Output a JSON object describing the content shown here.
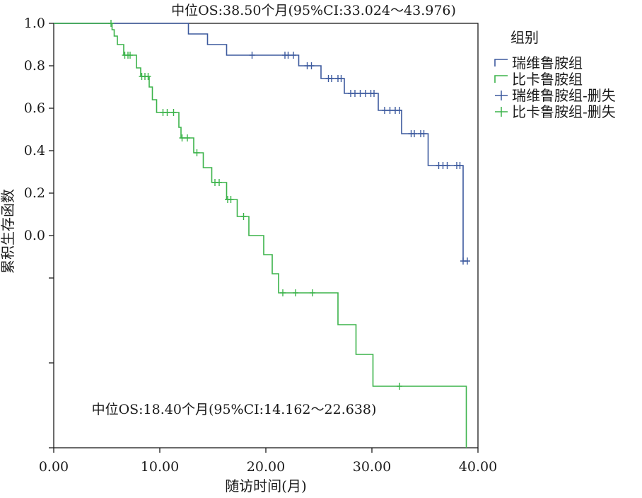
{
  "chart_data": {
    "type": "line",
    "subtype": "kaplan-meier",
    "title": "",
    "xlabel": "随访时间(月)",
    "ylabel": "累积生存函数",
    "xlim": [
      0,
      40
    ],
    "xticks": [
      "0.00",
      "10.00",
      "20.00",
      "30.00",
      "40.00"
    ],
    "yticks": [
      {
        "value": 1.0,
        "label": "1.0"
      },
      {
        "value": 0.8,
        "label": "0.8"
      },
      {
        "value": 0.6,
        "label": "0.6"
      },
      {
        "value": 0.4,
        "label": "0.4"
      },
      {
        "value": 0.2,
        "label": "0.2"
      },
      {
        "value": 0.0,
        "label": "0.0"
      },
      {
        "value": -0.2,
        "label": ""
      },
      {
        "value": -0.6,
        "label": ""
      },
      {
        "value": -1.0,
        "label": ""
      }
    ],
    "ylim": [
      -1.0,
      1.0
    ],
    "grid": false,
    "legend": {
      "title": "组别",
      "position": "right",
      "items": [
        {
          "label": "瑞维鲁胺组",
          "series": "a",
          "kind": "step"
        },
        {
          "label": "比卡鲁胺组",
          "series": "b",
          "kind": "step"
        },
        {
          "label": "瑞维鲁胺组-删失",
          "series": "a",
          "kind": "censor"
        },
        {
          "label": "比卡鲁胺组-删失",
          "series": "b",
          "kind": "censor"
        }
      ]
    },
    "annotations": [
      {
        "text": "中位OS:38.50个月(95%CI:33.024～43.976)",
        "x": 24.5,
        "y": 1.06
      },
      {
        "text": "中位OS:18.40个月(95%CI:14.162～22.638)",
        "x": 17.0,
        "y": -0.82
      }
    ],
    "series": [
      {
        "id": "a",
        "name": "瑞维鲁胺组",
        "color": "#3d5a9e",
        "steps": [
          [
            0,
            1.0
          ],
          [
            12.7,
            0.95
          ],
          [
            14.5,
            0.9
          ],
          [
            16.3,
            0.85
          ],
          [
            23.1,
            0.8
          ],
          [
            25.2,
            0.74
          ],
          [
            27.4,
            0.67
          ],
          [
            30.6,
            0.59
          ],
          [
            32.8,
            0.48
          ],
          [
            35.3,
            0.33
          ],
          [
            38.6,
            -0.12
          ],
          [
            39.0,
            -0.12
          ]
        ],
        "censored": [
          18.7,
          21.8,
          22.1,
          22.6,
          23.9,
          24.3,
          25.9,
          26.2,
          26.8,
          27.1,
          28.0,
          28.4,
          28.9,
          29.4,
          29.9,
          30.2,
          31.2,
          31.7,
          32.2,
          32.6,
          33.7,
          34.0,
          34.6,
          34.9,
          36.3,
          36.7,
          37.1,
          38.0,
          38.3,
          38.6,
          39.0
        ]
      },
      {
        "id": "b",
        "name": "比卡鲁胺组",
        "color": "#3bb34a",
        "steps": [
          [
            0,
            1.0
          ],
          [
            5.5,
            0.97
          ],
          [
            5.7,
            0.94
          ],
          [
            6.0,
            0.9
          ],
          [
            6.6,
            0.85
          ],
          [
            7.8,
            0.79
          ],
          [
            8.2,
            0.75
          ],
          [
            9.0,
            0.7
          ],
          [
            9.3,
            0.64
          ],
          [
            9.7,
            0.58
          ],
          [
            11.8,
            0.51
          ],
          [
            12.0,
            0.46
          ],
          [
            13.2,
            0.39
          ],
          [
            14.1,
            0.32
          ],
          [
            14.9,
            0.25
          ],
          [
            16.3,
            0.17
          ],
          [
            17.3,
            0.09
          ],
          [
            18.4,
            0.0
          ],
          [
            19.8,
            -0.09
          ],
          [
            20.6,
            -0.18
          ],
          [
            21.2,
            -0.27
          ],
          [
            26.8,
            -0.42
          ],
          [
            28.5,
            -0.56
          ],
          [
            30.1,
            -0.71
          ],
          [
            38.9,
            -1.0
          ]
        ],
        "censored": [
          5.4,
          6.7,
          7.0,
          7.2,
          8.3,
          8.6,
          8.9,
          10.3,
          10.7,
          11.3,
          12.1,
          12.6,
          13.5,
          15.2,
          15.6,
          16.4,
          16.7,
          17.9,
          21.6,
          22.8,
          24.4,
          32.6
        ]
      }
    ]
  }
}
